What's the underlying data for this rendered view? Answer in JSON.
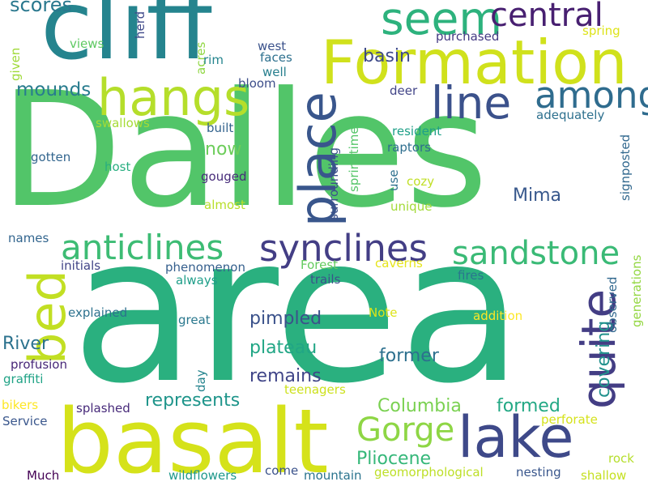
{
  "words": [
    {
      "text": "Dalles",
      "color": "#52c569",
      "rotated": false
    },
    {
      "text": "area",
      "color": "#2ab07f",
      "rotated": false
    },
    {
      "text": "cliff",
      "color": "#25848e",
      "rotated": false
    },
    {
      "text": "basalt",
      "color": "#d5e21a",
      "rotated": false
    },
    {
      "text": "Formation",
      "color": "#d0e11c",
      "rotated": false
    },
    {
      "text": "seem",
      "color": "#2db27d",
      "rotated": false
    },
    {
      "text": "central",
      "color": "#482071",
      "rotated": false
    },
    {
      "text": "hangs",
      "color": "#b5de2b",
      "rotated": false
    },
    {
      "text": "line",
      "color": "#3b518b",
      "rotated": false
    },
    {
      "text": "among",
      "color": "#2f6c8e",
      "rotated": false
    },
    {
      "text": "place",
      "color": "#39568c",
      "rotated": true
    },
    {
      "text": "lake",
      "color": "#3e4989",
      "rotated": false
    },
    {
      "text": "bed",
      "color": "#c2df23",
      "rotated": true
    },
    {
      "text": "synclines",
      "color": "#433e85",
      "rotated": false
    },
    {
      "text": "anticlines",
      "color": "#3dbc74",
      "rotated": false
    },
    {
      "text": "sandstone",
      "color": "#3aba76",
      "rotated": false
    },
    {
      "text": "quite",
      "color": "#433d84",
      "rotated": true
    },
    {
      "text": "Gorge",
      "color": "#8ed645",
      "rotated": false
    },
    {
      "text": "scores",
      "color": "#2a788e",
      "rotated": false
    },
    {
      "text": "mounds",
      "color": "#287c8e",
      "rotated": false
    },
    {
      "text": "basin",
      "color": "#3e4a89",
      "rotated": false
    },
    {
      "text": "now",
      "color": "#6ccd5a",
      "rotated": false
    },
    {
      "text": "Mima",
      "color": "#38588c",
      "rotated": false
    },
    {
      "text": "pimpled",
      "color": "#3b528b",
      "rotated": false
    },
    {
      "text": "plateau",
      "color": "#21a685",
      "rotated": false
    },
    {
      "text": "former",
      "color": "#2d708e",
      "rotated": false
    },
    {
      "text": "remains",
      "color": "#404588",
      "rotated": false
    },
    {
      "text": "River",
      "color": "#2c728e",
      "rotated": false
    },
    {
      "text": "represents",
      "color": "#1f958b",
      "rotated": false
    },
    {
      "text": "Columbia",
      "color": "#7ad151",
      "rotated": false
    },
    {
      "text": "formed",
      "color": "#22a884",
      "rotated": false
    },
    {
      "text": "Pliocene",
      "color": "#35b779",
      "rotated": false
    },
    {
      "text": "covering",
      "color": "#21918c",
      "rotated": true
    },
    {
      "text": "purchased",
      "color": "#443a83",
      "rotated": false
    },
    {
      "text": "spring",
      "color": "#dde318",
      "rotated": false
    },
    {
      "text": "views",
      "color": "#5ec962",
      "rotated": false
    },
    {
      "text": "herd",
      "color": "#3e4989",
      "rotated": true
    },
    {
      "text": "acres",
      "color": "#90d743",
      "rotated": true
    },
    {
      "text": "west",
      "color": "#3b528b",
      "rotated": false
    },
    {
      "text": "faces",
      "color": "#2d708e",
      "rotated": false
    },
    {
      "text": "well",
      "color": "#277f8e",
      "rotated": false
    },
    {
      "text": "rim",
      "color": "#25858e",
      "rotated": false
    },
    {
      "text": "bloom",
      "color": "#3d4e8a",
      "rotated": false
    },
    {
      "text": "deer",
      "color": "#414487",
      "rotated": false
    },
    {
      "text": "given",
      "color": "#a0da39",
      "rotated": true
    },
    {
      "text": "swallows",
      "color": "#a5db36",
      "rotated": false
    },
    {
      "text": "built",
      "color": "#33638d",
      "rotated": false
    },
    {
      "text": "adequately",
      "color": "#2d708e",
      "rotated": false
    },
    {
      "text": "resident",
      "color": "#1fa088",
      "rotated": false
    },
    {
      "text": "signposted",
      "color": "#31688e",
      "rotated": true
    },
    {
      "text": "raptors",
      "color": "#2e6e8e",
      "rotated": false
    },
    {
      "text": "springtime",
      "color": "#54c568",
      "rotated": true
    },
    {
      "text": "surrounding",
      "color": "#3c508b",
      "rotated": true
    },
    {
      "text": "use",
      "color": "#2d708e",
      "rotated": true
    },
    {
      "text": "gotten",
      "color": "#32658e",
      "rotated": false
    },
    {
      "text": "host",
      "color": "#28ae80",
      "rotated": false
    },
    {
      "text": "cozy",
      "color": "#c0df25",
      "rotated": false
    },
    {
      "text": "gouged",
      "color": "#472c7a",
      "rotated": false
    },
    {
      "text": "almost",
      "color": "#b8de29",
      "rotated": false
    },
    {
      "text": "unique",
      "color": "#a2da37",
      "rotated": false
    },
    {
      "text": "names",
      "color": "#32658e",
      "rotated": false
    },
    {
      "text": "Forest",
      "color": "#63cb5f",
      "rotated": false
    },
    {
      "text": "caverns",
      "color": "#e5e419",
      "rotated": false
    },
    {
      "text": "initials",
      "color": "#414487",
      "rotated": false
    },
    {
      "text": "phenomenon",
      "color": "#355f8d",
      "rotated": false
    },
    {
      "text": "always",
      "color": "#1f9e89",
      "rotated": false
    },
    {
      "text": "trails",
      "color": "#3b528b",
      "rotated": false
    },
    {
      "text": "fires",
      "color": "#2a768e",
      "rotated": false
    },
    {
      "text": "observed",
      "color": "#31688e",
      "rotated": true
    },
    {
      "text": "generations",
      "color": "#93d741",
      "rotated": true
    },
    {
      "text": "explained",
      "color": "#2c718e",
      "rotated": false
    },
    {
      "text": "Note",
      "color": "#dde318",
      "rotated": false
    },
    {
      "text": "addition",
      "color": "#fde725",
      "rotated": false
    },
    {
      "text": "great",
      "color": "#2a788e",
      "rotated": false
    },
    {
      "text": "profusion",
      "color": "#482878",
      "rotated": false
    },
    {
      "text": "graffiti",
      "color": "#20a386",
      "rotated": false
    },
    {
      "text": "day",
      "color": "#25848e",
      "rotated": true
    },
    {
      "text": "teenagers",
      "color": "#cde11d",
      "rotated": false
    },
    {
      "text": "bikers",
      "color": "#fde725",
      "rotated": false
    },
    {
      "text": "splashed",
      "color": "#472a7a",
      "rotated": false
    },
    {
      "text": "Service",
      "color": "#39568c",
      "rotated": false
    },
    {
      "text": "perforate",
      "color": "#d5e21a",
      "rotated": false
    },
    {
      "text": "rock",
      "color": "#b5de2b",
      "rotated": false
    },
    {
      "text": "come",
      "color": "#3b528b",
      "rotated": false
    },
    {
      "text": "Much",
      "color": "#440154",
      "rotated": false
    },
    {
      "text": "wildflowers",
      "color": "#1f988b",
      "rotated": false
    },
    {
      "text": "mountain",
      "color": "#2b748e",
      "rotated": false
    },
    {
      "text": "geomorphological",
      "color": "#bddf26",
      "rotated": false
    },
    {
      "text": "nesting",
      "color": "#39568c",
      "rotated": false
    },
    {
      "text": "shallow",
      "color": "#c5e021",
      "rotated": false
    }
  ]
}
